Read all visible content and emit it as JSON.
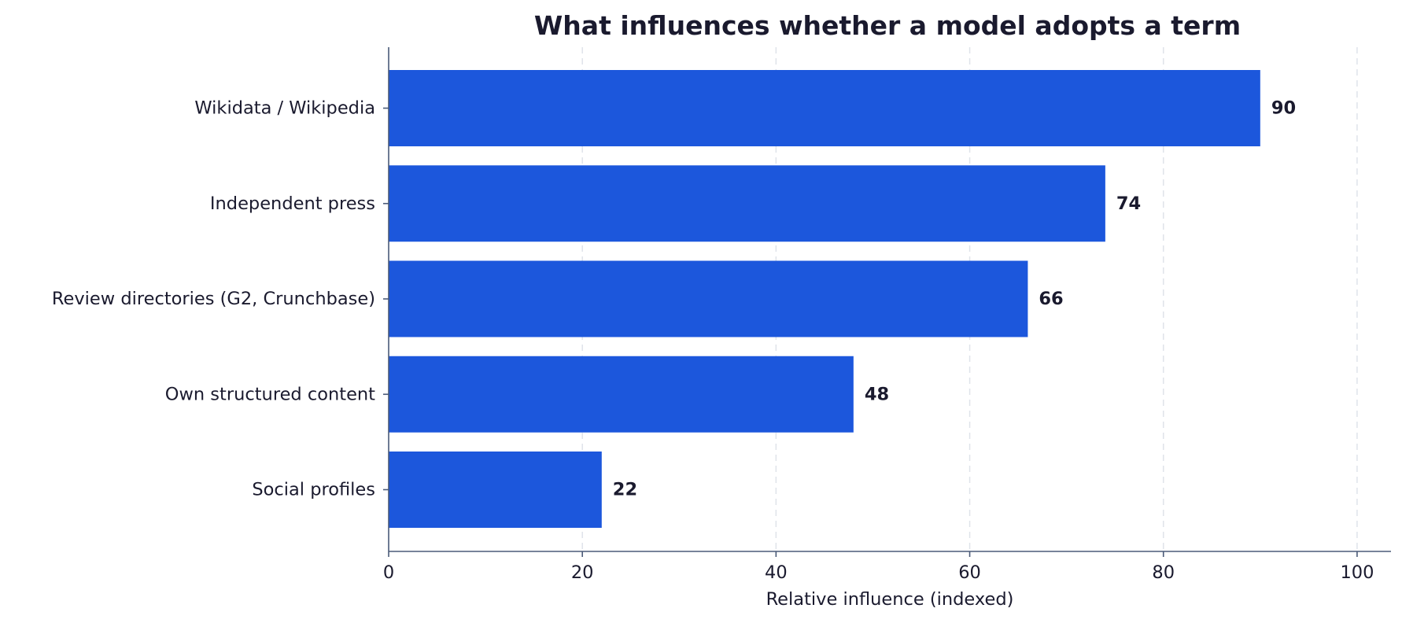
{
  "chart_data": {
    "type": "bar",
    "orientation": "horizontal",
    "title": "What influences whether a model adopts a term",
    "xlabel": "Relative influence (indexed)",
    "ylabel": "",
    "categories": [
      "Wikidata / Wikipedia",
      "Independent press",
      "Review directories (G2, Crunchbase)",
      "Own structured content",
      "Social profiles"
    ],
    "values": [
      90,
      74,
      66,
      48,
      22
    ],
    "xlim": [
      0,
      103.5
    ],
    "xticks": [
      0,
      20,
      40,
      60,
      80,
      100
    ],
    "xtick_labels": [
      "0",
      "20",
      "40",
      "60",
      "80",
      "100"
    ],
    "grid": "x-dashed",
    "bar_color": "#1c57dc",
    "legend": "none"
  }
}
